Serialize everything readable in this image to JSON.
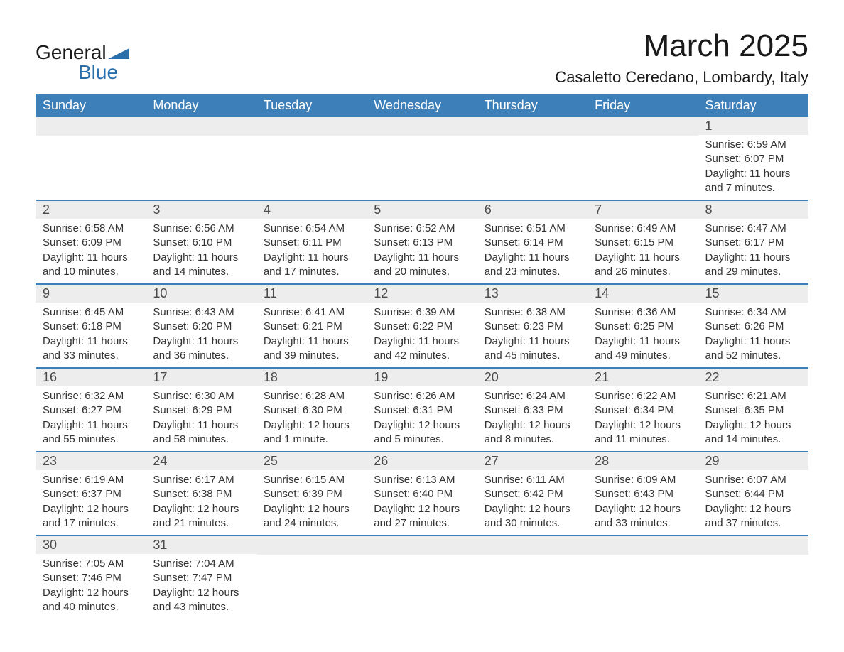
{
  "logo": {
    "word1": "General",
    "word2": "Blue"
  },
  "title": "March 2025",
  "location": "Casaletto Ceredano, Lombardy, Italy",
  "colors": {
    "header_bg": "#3c7fb9",
    "header_text": "#ffffff",
    "daynum_bg": "#ededed",
    "daynum_text": "#4a4a4a",
    "border": "#3c7fb9",
    "logo_blue": "#2b6fab"
  },
  "weekdays": [
    "Sunday",
    "Monday",
    "Tuesday",
    "Wednesday",
    "Thursday",
    "Friday",
    "Saturday"
  ],
  "weeks": [
    [
      null,
      null,
      null,
      null,
      null,
      null,
      {
        "n": "1",
        "sunrise": "Sunrise: 6:59 AM",
        "sunset": "Sunset: 6:07 PM",
        "dl1": "Daylight: 11 hours",
        "dl2": "and 7 minutes."
      }
    ],
    [
      {
        "n": "2",
        "sunrise": "Sunrise: 6:58 AM",
        "sunset": "Sunset: 6:09 PM",
        "dl1": "Daylight: 11 hours",
        "dl2": "and 10 minutes."
      },
      {
        "n": "3",
        "sunrise": "Sunrise: 6:56 AM",
        "sunset": "Sunset: 6:10 PM",
        "dl1": "Daylight: 11 hours",
        "dl2": "and 14 minutes."
      },
      {
        "n": "4",
        "sunrise": "Sunrise: 6:54 AM",
        "sunset": "Sunset: 6:11 PM",
        "dl1": "Daylight: 11 hours",
        "dl2": "and 17 minutes."
      },
      {
        "n": "5",
        "sunrise": "Sunrise: 6:52 AM",
        "sunset": "Sunset: 6:13 PM",
        "dl1": "Daylight: 11 hours",
        "dl2": "and 20 minutes."
      },
      {
        "n": "6",
        "sunrise": "Sunrise: 6:51 AM",
        "sunset": "Sunset: 6:14 PM",
        "dl1": "Daylight: 11 hours",
        "dl2": "and 23 minutes."
      },
      {
        "n": "7",
        "sunrise": "Sunrise: 6:49 AM",
        "sunset": "Sunset: 6:15 PM",
        "dl1": "Daylight: 11 hours",
        "dl2": "and 26 minutes."
      },
      {
        "n": "8",
        "sunrise": "Sunrise: 6:47 AM",
        "sunset": "Sunset: 6:17 PM",
        "dl1": "Daylight: 11 hours",
        "dl2": "and 29 minutes."
      }
    ],
    [
      {
        "n": "9",
        "sunrise": "Sunrise: 6:45 AM",
        "sunset": "Sunset: 6:18 PM",
        "dl1": "Daylight: 11 hours",
        "dl2": "and 33 minutes."
      },
      {
        "n": "10",
        "sunrise": "Sunrise: 6:43 AM",
        "sunset": "Sunset: 6:20 PM",
        "dl1": "Daylight: 11 hours",
        "dl2": "and 36 minutes."
      },
      {
        "n": "11",
        "sunrise": "Sunrise: 6:41 AM",
        "sunset": "Sunset: 6:21 PM",
        "dl1": "Daylight: 11 hours",
        "dl2": "and 39 minutes."
      },
      {
        "n": "12",
        "sunrise": "Sunrise: 6:39 AM",
        "sunset": "Sunset: 6:22 PM",
        "dl1": "Daylight: 11 hours",
        "dl2": "and 42 minutes."
      },
      {
        "n": "13",
        "sunrise": "Sunrise: 6:38 AM",
        "sunset": "Sunset: 6:23 PM",
        "dl1": "Daylight: 11 hours",
        "dl2": "and 45 minutes."
      },
      {
        "n": "14",
        "sunrise": "Sunrise: 6:36 AM",
        "sunset": "Sunset: 6:25 PM",
        "dl1": "Daylight: 11 hours",
        "dl2": "and 49 minutes."
      },
      {
        "n": "15",
        "sunrise": "Sunrise: 6:34 AM",
        "sunset": "Sunset: 6:26 PM",
        "dl1": "Daylight: 11 hours",
        "dl2": "and 52 minutes."
      }
    ],
    [
      {
        "n": "16",
        "sunrise": "Sunrise: 6:32 AM",
        "sunset": "Sunset: 6:27 PM",
        "dl1": "Daylight: 11 hours",
        "dl2": "and 55 minutes."
      },
      {
        "n": "17",
        "sunrise": "Sunrise: 6:30 AM",
        "sunset": "Sunset: 6:29 PM",
        "dl1": "Daylight: 11 hours",
        "dl2": "and 58 minutes."
      },
      {
        "n": "18",
        "sunrise": "Sunrise: 6:28 AM",
        "sunset": "Sunset: 6:30 PM",
        "dl1": "Daylight: 12 hours",
        "dl2": "and 1 minute."
      },
      {
        "n": "19",
        "sunrise": "Sunrise: 6:26 AM",
        "sunset": "Sunset: 6:31 PM",
        "dl1": "Daylight: 12 hours",
        "dl2": "and 5 minutes."
      },
      {
        "n": "20",
        "sunrise": "Sunrise: 6:24 AM",
        "sunset": "Sunset: 6:33 PM",
        "dl1": "Daylight: 12 hours",
        "dl2": "and 8 minutes."
      },
      {
        "n": "21",
        "sunrise": "Sunrise: 6:22 AM",
        "sunset": "Sunset: 6:34 PM",
        "dl1": "Daylight: 12 hours",
        "dl2": "and 11 minutes."
      },
      {
        "n": "22",
        "sunrise": "Sunrise: 6:21 AM",
        "sunset": "Sunset: 6:35 PM",
        "dl1": "Daylight: 12 hours",
        "dl2": "and 14 minutes."
      }
    ],
    [
      {
        "n": "23",
        "sunrise": "Sunrise: 6:19 AM",
        "sunset": "Sunset: 6:37 PM",
        "dl1": "Daylight: 12 hours",
        "dl2": "and 17 minutes."
      },
      {
        "n": "24",
        "sunrise": "Sunrise: 6:17 AM",
        "sunset": "Sunset: 6:38 PM",
        "dl1": "Daylight: 12 hours",
        "dl2": "and 21 minutes."
      },
      {
        "n": "25",
        "sunrise": "Sunrise: 6:15 AM",
        "sunset": "Sunset: 6:39 PM",
        "dl1": "Daylight: 12 hours",
        "dl2": "and 24 minutes."
      },
      {
        "n": "26",
        "sunrise": "Sunrise: 6:13 AM",
        "sunset": "Sunset: 6:40 PM",
        "dl1": "Daylight: 12 hours",
        "dl2": "and 27 minutes."
      },
      {
        "n": "27",
        "sunrise": "Sunrise: 6:11 AM",
        "sunset": "Sunset: 6:42 PM",
        "dl1": "Daylight: 12 hours",
        "dl2": "and 30 minutes."
      },
      {
        "n": "28",
        "sunrise": "Sunrise: 6:09 AM",
        "sunset": "Sunset: 6:43 PM",
        "dl1": "Daylight: 12 hours",
        "dl2": "and 33 minutes."
      },
      {
        "n": "29",
        "sunrise": "Sunrise: 6:07 AM",
        "sunset": "Sunset: 6:44 PM",
        "dl1": "Daylight: 12 hours",
        "dl2": "and 37 minutes."
      }
    ],
    [
      {
        "n": "30",
        "sunrise": "Sunrise: 7:05 AM",
        "sunset": "Sunset: 7:46 PM",
        "dl1": "Daylight: 12 hours",
        "dl2": "and 40 minutes."
      },
      {
        "n": "31",
        "sunrise": "Sunrise: 7:04 AM",
        "sunset": "Sunset: 7:47 PM",
        "dl1": "Daylight: 12 hours",
        "dl2": "and 43 minutes."
      },
      null,
      null,
      null,
      null,
      null
    ]
  ]
}
